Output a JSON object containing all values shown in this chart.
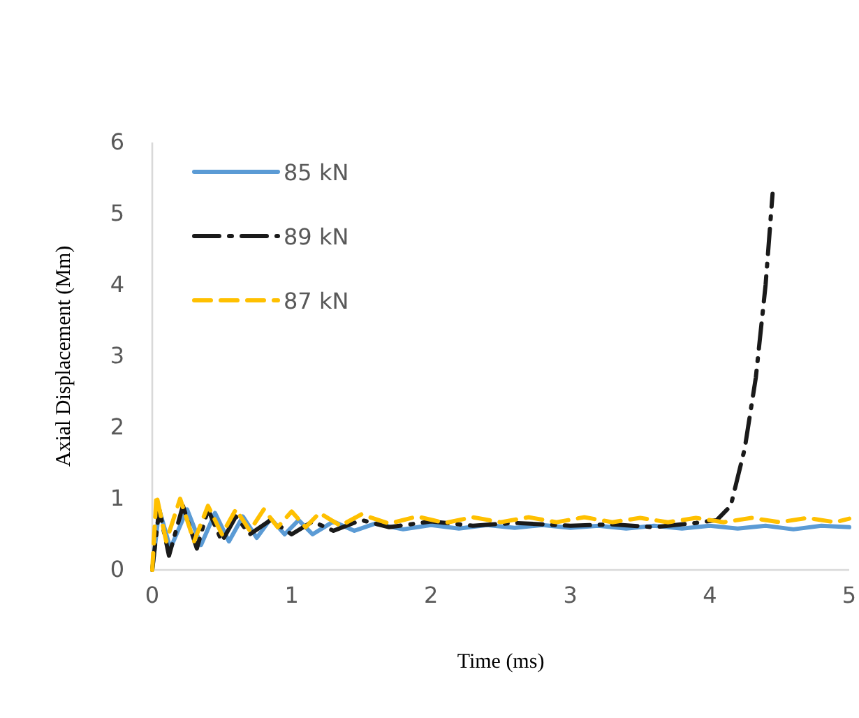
{
  "chart_data": {
    "type": "line",
    "xlabel": "Time (ms)",
    "ylabel": "Axial Displacement (Mm)",
    "xlim": [
      0,
      5
    ],
    "xticks": [
      0,
      1,
      2,
      3,
      4,
      5
    ],
    "ylim": [
      0,
      6
    ],
    "yticks": [
      0,
      1,
      2,
      3,
      4,
      5,
      6
    ],
    "grid": false,
    "legend": "top left",
    "marker": "none",
    "series": [
      {
        "name": "85 kN",
        "color": "#5b9bd5",
        "line_style": "solid",
        "x": [
          0,
          0.05,
          0.13,
          0.25,
          0.35,
          0.45,
          0.55,
          0.65,
          0.75,
          0.85,
          0.95,
          1.05,
          1.15,
          1.3,
          1.45,
          1.6,
          1.8,
          2,
          2.2,
          2.4,
          2.6,
          2.8,
          3,
          3.2,
          3.4,
          3.6,
          3.8,
          4,
          4.2,
          4.4,
          4.6,
          4.8,
          5
        ],
        "values": [
          0,
          0.85,
          0.3,
          0.85,
          0.35,
          0.8,
          0.4,
          0.75,
          0.45,
          0.72,
          0.5,
          0.7,
          0.5,
          0.68,
          0.55,
          0.65,
          0.57,
          0.63,
          0.58,
          0.63,
          0.59,
          0.63,
          0.59,
          0.62,
          0.58,
          0.62,
          0.58,
          0.62,
          0.58,
          0.62,
          0.57,
          0.62,
          0.6
        ]
      },
      {
        "name": "89 kN",
        "color": "#1a1a1a",
        "line_style": "dashdot",
        "x": [
          0,
          0.05,
          0.12,
          0.22,
          0.32,
          0.4,
          0.5,
          0.6,
          0.7,
          0.85,
          1,
          1.15,
          1.3,
          1.5,
          1.7,
          2,
          2.3,
          2.6,
          3,
          3.3,
          3.6,
          3.9,
          4.05,
          4.15,
          4.25,
          4.33,
          4.4,
          4.45
        ],
        "values": [
          0,
          0.85,
          0.2,
          0.9,
          0.3,
          0.85,
          0.4,
          0.75,
          0.5,
          0.7,
          0.5,
          0.68,
          0.55,
          0.7,
          0.6,
          0.68,
          0.62,
          0.66,
          0.62,
          0.64,
          0.6,
          0.66,
          0.7,
          0.9,
          1.7,
          2.7,
          4.0,
          5.28
        ]
      },
      {
        "name": "87 kN",
        "color": "#ffc000",
        "line_style": "dashed",
        "x": [
          0,
          0.03,
          0.1,
          0.2,
          0.3,
          0.4,
          0.5,
          0.6,
          0.7,
          0.8,
          0.9,
          1,
          1.1,
          1.2,
          1.35,
          1.5,
          1.7,
          1.9,
          2.1,
          2.3,
          2.5,
          2.7,
          2.9,
          3.1,
          3.3,
          3.5,
          3.7,
          3.9,
          4.1,
          4.3,
          4.5,
          4.7,
          4.9,
          5
        ],
        "values": [
          0,
          1.05,
          0.4,
          1,
          0.4,
          0.9,
          0.5,
          0.85,
          0.55,
          0.85,
          0.6,
          0.82,
          0.6,
          0.8,
          0.62,
          0.78,
          0.65,
          0.75,
          0.66,
          0.74,
          0.67,
          0.74,
          0.67,
          0.74,
          0.67,
          0.73,
          0.67,
          0.73,
          0.67,
          0.73,
          0.67,
          0.73,
          0.67,
          0.72
        ]
      }
    ]
  }
}
